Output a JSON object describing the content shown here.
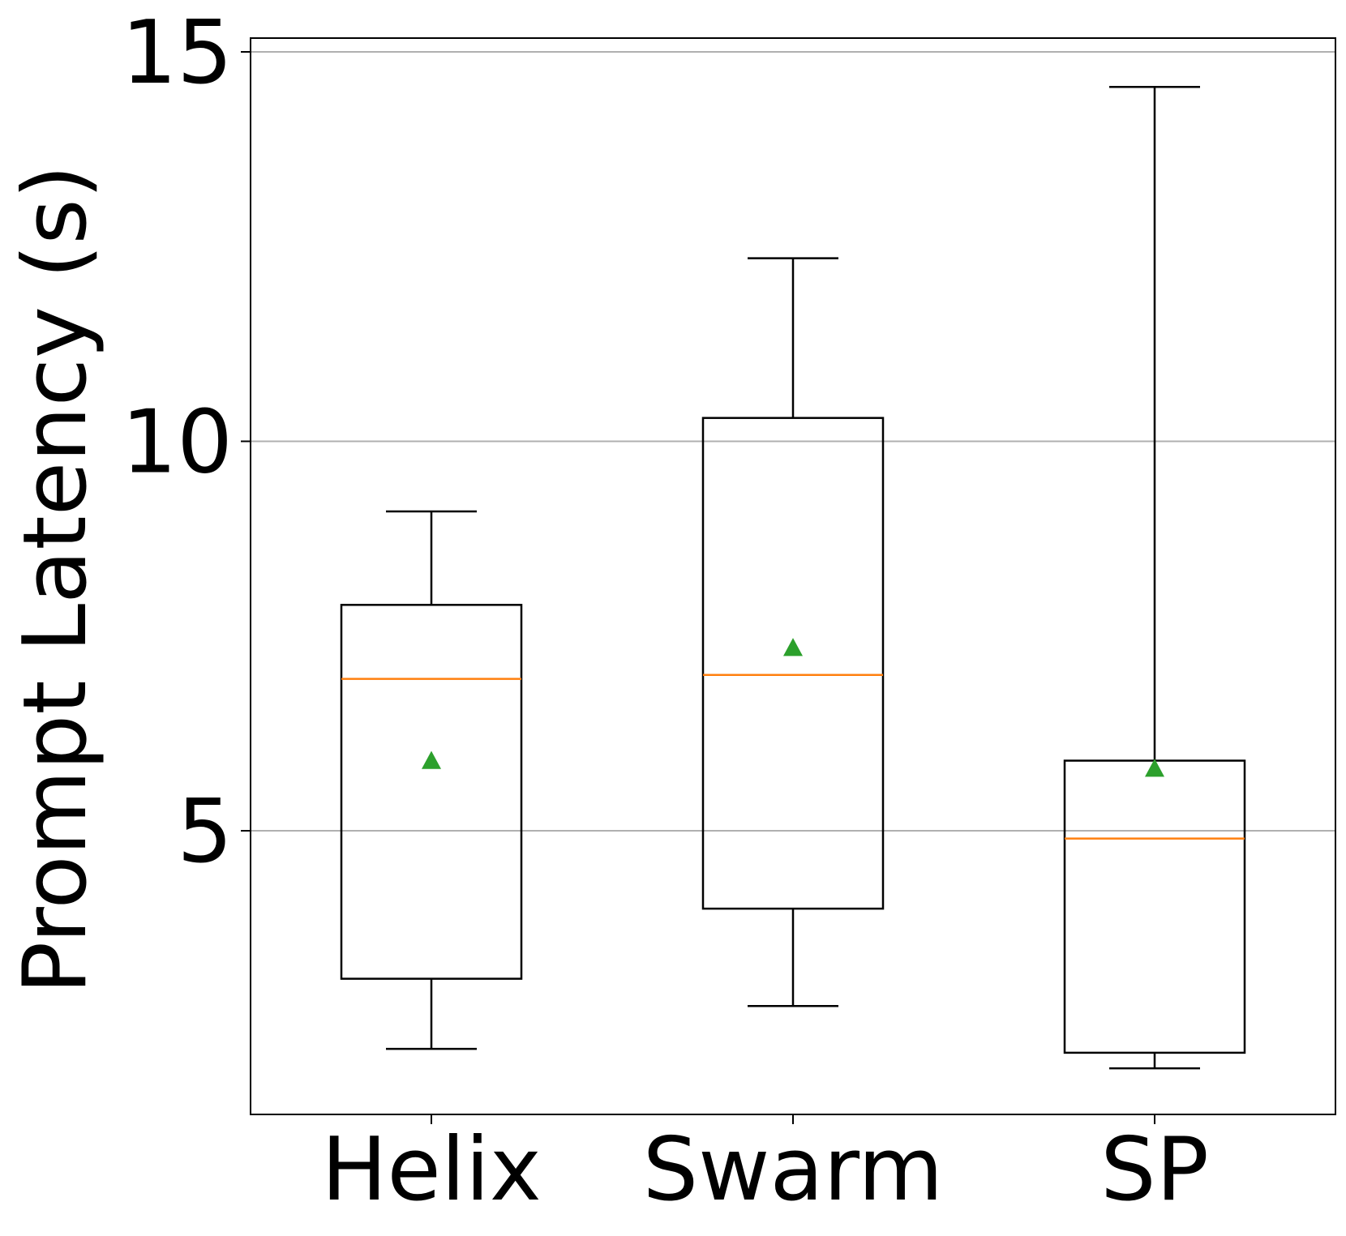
{
  "chart_data": {
    "type": "box",
    "title": "",
    "xlabel": "",
    "ylabel": "Prompt Latency (s)",
    "ylim": [
      1.5,
      15.35
    ],
    "yticks": [
      5,
      10,
      15
    ],
    "grid": {
      "y": true,
      "x": false
    },
    "categories": [
      "Helix",
      "Swarm",
      "SP"
    ],
    "boxes": [
      {
        "label": "Helix",
        "whisker_low": 2.2,
        "q1": 3.1,
        "median": 6.95,
        "mean": 5.9,
        "q3": 7.9,
        "whisker_high": 9.1
      },
      {
        "label": "Swarm",
        "whisker_low": 2.75,
        "q1": 4.0,
        "median": 7.0,
        "mean": 7.35,
        "q3": 10.3,
        "whisker_high": 12.35
      },
      {
        "label": "SP",
        "whisker_low": 1.95,
        "q1": 2.15,
        "median": 4.9,
        "mean": 5.8,
        "q3": 5.9,
        "whisker_high": 14.55
      }
    ],
    "colors": {
      "box": "#000000",
      "median": "#ff7f0e",
      "mean": "#2ca02c",
      "grid": "#b0b0b0"
    }
  }
}
